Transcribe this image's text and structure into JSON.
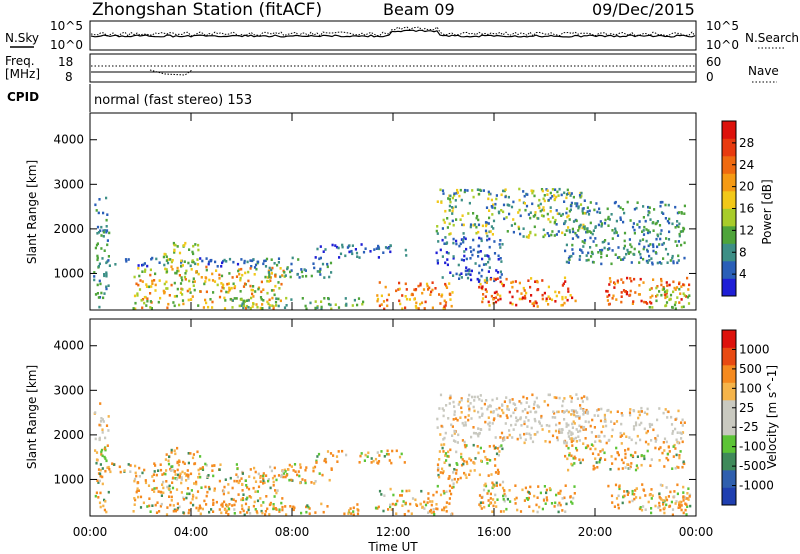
{
  "header": {
    "title": "Zhongshan Station (fitACF)",
    "beam": "Beam 09",
    "date": "09/Dec/2015"
  },
  "summary_panels": {
    "nsky_label": "N.Sky",
    "nsearch_label": "N.Search",
    "nsky_ticks": [
      "10^5",
      "10^0"
    ],
    "nsearch_ticks": [
      "10^5",
      "10^0"
    ],
    "freq_label_1": "Freq.",
    "freq_label_2": "[MHz]",
    "freq_ticks": [
      "18",
      "8"
    ],
    "nave_label": "Nave",
    "nave_ticks": [
      "60",
      "0"
    ],
    "cpid_label": "CPID",
    "cpid_text": "normal (fast stereo) 153"
  },
  "chart_data": [
    {
      "type": "heatmap",
      "name": "power",
      "ylabel": "Slant Range [km]",
      "xlabel": "Time UT",
      "x_ticks": [
        "00:00",
        "04:00",
        "08:00",
        "12:00",
        "16:00",
        "20:00",
        "00:00"
      ],
      "y_ticks": [
        "1000",
        "2000",
        "3000",
        "4000"
      ],
      "ylim": [
        180,
        4600
      ],
      "colorbar": {
        "label": "Power [dB]",
        "ticks": [
          "4",
          "8",
          "12",
          "16",
          "20",
          "24",
          "28"
        ],
        "colors": [
          "#1f1fd6",
          "#2a5fb8",
          "#3d8f86",
          "#4ea43a",
          "#a8cc2a",
          "#f2c818",
          "#f59a14",
          "#ef6a10",
          "#e83a0f",
          "#dd120c"
        ]
      }
    },
    {
      "type": "heatmap",
      "name": "velocity",
      "ylabel": "Slant Range [km]",
      "xlabel": "Time UT",
      "x_ticks": [
        "00:00",
        "04:00",
        "08:00",
        "12:00",
        "16:00",
        "20:00",
        "00:00"
      ],
      "y_ticks": [
        "1000",
        "2000",
        "3000",
        "4000"
      ],
      "ylim": [
        180,
        4600
      ],
      "colorbar": {
        "label": "Velocity [m s^-1]",
        "ticks": [
          "1000",
          "500",
          "100",
          "25",
          "-25",
          "-100",
          "-500",
          "-1000"
        ],
        "colors": [
          "#1f3fb0",
          "#2f5fae",
          "#3f8a5a",
          "#5cc436",
          "#c9c9c0",
          "#c9c9c0",
          "#f5b44a",
          "#f58a1f",
          "#e84a12",
          "#dd120c"
        ]
      }
    }
  ],
  "colors": {
    "summary_line": "#000000",
    "panel_border": "#000000"
  }
}
